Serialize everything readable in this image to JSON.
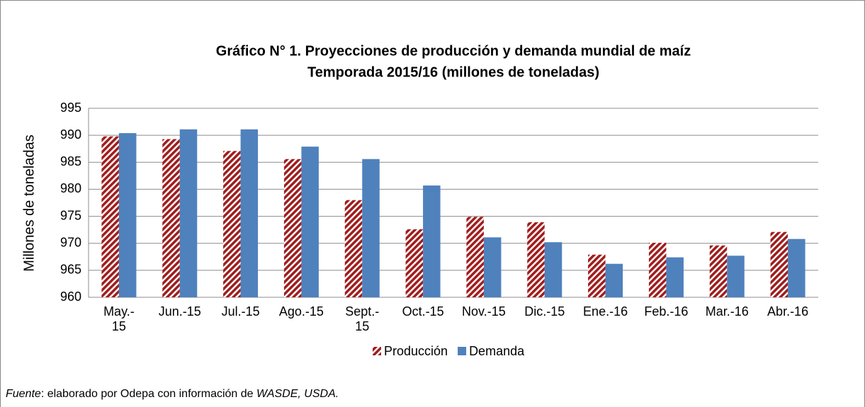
{
  "chart_data": {
    "type": "bar",
    "title": "Gráfico N° 1. Proyecciones de producción y demanda mundial de maíz",
    "subtitle": "Temporada 2015/16 (millones de toneladas)",
    "y_label": "Millones de toneladas",
    "categories": [
      "May.-\n15",
      "Jun.-15",
      "Jul.-15",
      "Ago.-15",
      "Sept.-\n15",
      "Oct.-15",
      "Nov.-15",
      "Dic.-15",
      "Ene.-16",
      "Feb.-16",
      "Mar.-16",
      "Abr.-16"
    ],
    "series": [
      {
        "name": "Producción",
        "color": "#a01d1d",
        "hatch": true,
        "values": [
          989.8,
          989.3,
          987.1,
          985.6,
          978.0,
          972.6,
          974.9,
          973.9,
          967.9,
          970.1,
          969.6,
          972.1
        ]
      },
      {
        "name": "Demanda",
        "color": "#4f81bd",
        "hatch": false,
        "values": [
          990.4,
          991.1,
          991.1,
          987.9,
          985.6,
          980.7,
          971.1,
          970.2,
          966.2,
          967.4,
          967.7,
          970.8
        ]
      }
    ],
    "ylim": [
      960,
      995
    ],
    "yticks": [
      960,
      965,
      970,
      975,
      980,
      985,
      990,
      995
    ],
    "grid": true,
    "legend": "bottom"
  },
  "source": {
    "label": "Fuente",
    "text": ": elaborado por Odepa con información de ",
    "ref": "WASDE, USDA."
  }
}
